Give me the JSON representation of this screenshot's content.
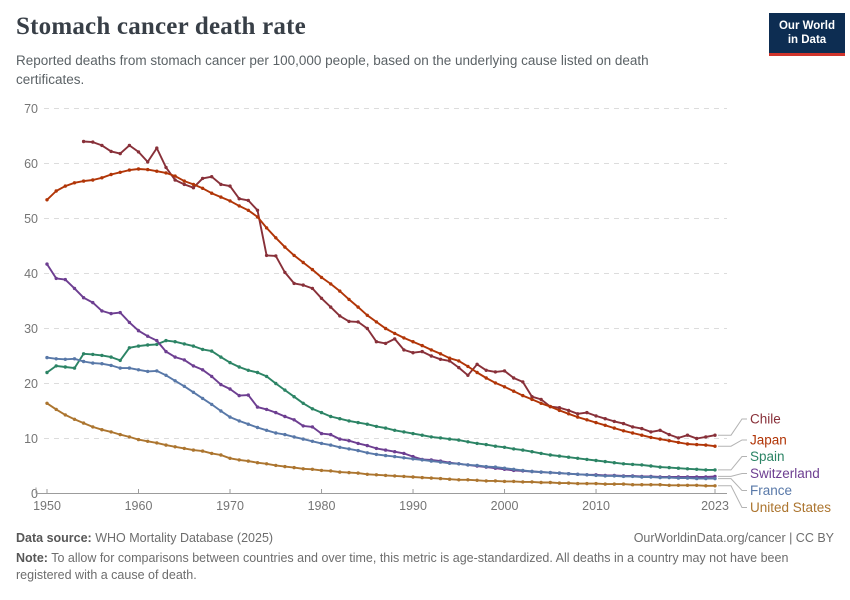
{
  "header": {
    "title": "Stomach cancer death rate",
    "subtitle": "Reported deaths from stomach cancer per 100,000 people, based on the underlying cause listed on death certificates.",
    "logo": {
      "line1": "Our World",
      "line2": "in Data",
      "bg_color": "#0d2d52",
      "accent_color": "#d0342c"
    }
  },
  "chart_data": {
    "type": "line",
    "title": "Stomach cancer death rate",
    "xlabel": "",
    "ylabel": "",
    "x_range": [
      1950,
      2023
    ],
    "ylim": [
      0,
      70
    ],
    "yticks": [
      0,
      10,
      20,
      30,
      40,
      50,
      60,
      70
    ],
    "xticks": [
      1950,
      1960,
      1970,
      1980,
      1990,
      2000,
      2010,
      2023
    ],
    "grid": true,
    "legend_position": "right",
    "axis_color": "#9c9c9c",
    "grid_color": "#dcdcdc",
    "tick_label_color": "#757575",
    "series": [
      {
        "name": "Chile",
        "color": "#883039",
        "start_year": 1954,
        "values": [
          64.0,
          63.9,
          63.3,
          62.2,
          61.8,
          63.3,
          62.1,
          60.3,
          62.8,
          59.3,
          57.0,
          56.2,
          55.6,
          57.3,
          57.6,
          56.2,
          55.9,
          53.6,
          53.3,
          51.5,
          43.3,
          43.2,
          40.2,
          38.2,
          37.9,
          37.3,
          35.5,
          33.9,
          32.3,
          31.3,
          31.2,
          30.0,
          27.6,
          27.3,
          28.1,
          26.1,
          25.6,
          25.8,
          25.0,
          24.4,
          24.1,
          22.9,
          21.5,
          23.5,
          22.4,
          22.1,
          22.3,
          21.0,
          20.3,
          17.6,
          17.1,
          15.8,
          15.6,
          15.1,
          14.5,
          14.7,
          14.1,
          13.6,
          13.1,
          12.7,
          12.1,
          11.8,
          11.2,
          11.5,
          10.7,
          10.1,
          10.6,
          10.0,
          10.3,
          10.6
        ]
      },
      {
        "name": "Japan",
        "color": "#B13507",
        "start_year": 1950,
        "values": [
          53.4,
          55.0,
          55.9,
          56.5,
          56.8,
          57.0,
          57.4,
          58.0,
          58.4,
          58.8,
          59.0,
          58.9,
          58.6,
          58.3,
          57.7,
          56.8,
          56.2,
          55.5,
          54.6,
          53.9,
          53.2,
          52.3,
          51.5,
          50.3,
          48.3,
          46.5,
          44.8,
          43.3,
          42.0,
          40.7,
          39.3,
          38.1,
          36.8,
          35.3,
          33.9,
          32.4,
          31.2,
          30.0,
          29.1,
          28.3,
          27.6,
          26.9,
          26.1,
          25.4,
          24.6,
          24.1,
          23.1,
          22.0,
          21.0,
          20.1,
          19.4,
          18.6,
          17.8,
          17.1,
          16.4,
          15.8,
          15.1,
          14.5,
          13.9,
          13.4,
          12.9,
          12.4,
          11.9,
          11.4,
          11.0,
          10.6,
          10.2,
          9.9,
          9.6,
          9.3,
          9.0,
          8.9,
          8.8,
          8.6
        ]
      },
      {
        "name": "Spain",
        "color": "#2C8465",
        "start_year": 1950,
        "values": [
          22.0,
          23.2,
          23.0,
          22.8,
          25.4,
          25.3,
          25.1,
          24.8,
          24.2,
          26.5,
          26.8,
          27.0,
          27.1,
          27.8,
          27.6,
          27.2,
          26.8,
          26.2,
          25.9,
          24.8,
          23.8,
          23.0,
          22.4,
          22.0,
          21.3,
          20.0,
          18.8,
          17.6,
          16.4,
          15.4,
          14.7,
          14.0,
          13.6,
          13.2,
          12.9,
          12.6,
          12.2,
          11.9,
          11.5,
          11.2,
          10.9,
          10.6,
          10.3,
          10.1,
          9.9,
          9.7,
          9.4,
          9.1,
          8.9,
          8.6,
          8.4,
          8.1,
          7.9,
          7.6,
          7.3,
          7.0,
          6.8,
          6.6,
          6.4,
          6.2,
          6.0,
          5.8,
          5.6,
          5.4,
          5.3,
          5.2,
          5.0,
          4.8,
          4.7,
          4.6,
          4.5,
          4.4,
          4.3,
          4.3
        ]
      },
      {
        "name": "Switzerland",
        "color": "#6D3E91",
        "start_year": 1950,
        "values": [
          41.7,
          39.1,
          38.9,
          37.3,
          35.6,
          34.7,
          33.2,
          32.7,
          32.9,
          31.1,
          29.6,
          28.6,
          27.8,
          25.8,
          24.8,
          24.3,
          23.2,
          22.5,
          21.3,
          19.8,
          19.0,
          17.8,
          17.9,
          15.7,
          15.3,
          14.7,
          14.0,
          13.4,
          12.3,
          12.1,
          10.9,
          10.7,
          9.9,
          9.6,
          9.1,
          8.7,
          8.2,
          7.9,
          7.6,
          7.3,
          6.7,
          6.2,
          6.1,
          5.9,
          5.6,
          5.4,
          5.2,
          5.0,
          4.8,
          4.6,
          4.4,
          4.2,
          4.1,
          4.0,
          3.9,
          3.8,
          3.7,
          3.6,
          3.5,
          3.4,
          3.4,
          3.3,
          3.3,
          3.2,
          3.2,
          3.1,
          3.1,
          3.0,
          3.0,
          3.0,
          3.0,
          3.0,
          3.0,
          3.1
        ]
      },
      {
        "name": "France",
        "color": "#5878A8",
        "start_year": 1950,
        "values": [
          24.7,
          24.5,
          24.4,
          24.5,
          24.0,
          23.7,
          23.6,
          23.3,
          22.8,
          22.8,
          22.5,
          22.2,
          22.3,
          21.5,
          20.5,
          19.5,
          18.4,
          17.3,
          16.2,
          15.0,
          13.9,
          13.2,
          12.6,
          12.0,
          11.5,
          11.0,
          10.7,
          10.3,
          9.9,
          9.5,
          9.1,
          8.8,
          8.4,
          8.1,
          7.8,
          7.4,
          7.1,
          6.9,
          6.7,
          6.5,
          6.3,
          6.1,
          5.9,
          5.7,
          5.5,
          5.4,
          5.2,
          5.1,
          4.9,
          4.8,
          4.6,
          4.4,
          4.2,
          4.0,
          3.9,
          3.8,
          3.7,
          3.6,
          3.5,
          3.4,
          3.3,
          3.2,
          3.2,
          3.1,
          3.1,
          3.0,
          3.0,
          2.9,
          2.9,
          2.8,
          2.8,
          2.7,
          2.7,
          2.7
        ]
      },
      {
        "name": "United States",
        "color": "#AC752F",
        "start_year": 1950,
        "values": [
          16.4,
          15.3,
          14.3,
          13.5,
          12.8,
          12.1,
          11.6,
          11.2,
          10.7,
          10.3,
          9.8,
          9.5,
          9.2,
          8.8,
          8.5,
          8.2,
          7.9,
          7.7,
          7.3,
          7.0,
          6.4,
          6.1,
          5.9,
          5.6,
          5.4,
          5.1,
          4.9,
          4.7,
          4.5,
          4.4,
          4.2,
          4.1,
          3.9,
          3.8,
          3.7,
          3.5,
          3.4,
          3.3,
          3.2,
          3.1,
          3.0,
          2.9,
          2.8,
          2.7,
          2.6,
          2.5,
          2.5,
          2.4,
          2.3,
          2.3,
          2.2,
          2.2,
          2.1,
          2.1,
          2.0,
          2.0,
          1.9,
          1.9,
          1.8,
          1.8,
          1.8,
          1.7,
          1.7,
          1.7,
          1.6,
          1.6,
          1.6,
          1.6,
          1.5,
          1.5,
          1.5,
          1.5,
          1.4,
          1.4
        ]
      }
    ]
  },
  "footer": {
    "datasource_label": "Data source:",
    "datasource": "WHO Mortality Database (2025)",
    "attribution": "OurWorldinData.org/cancer | CC BY",
    "note_label": "Note:",
    "note": "To allow for comparisons between countries and over time, this metric is age-standardized. All deaths in a country may not have been registered with a cause of death."
  }
}
